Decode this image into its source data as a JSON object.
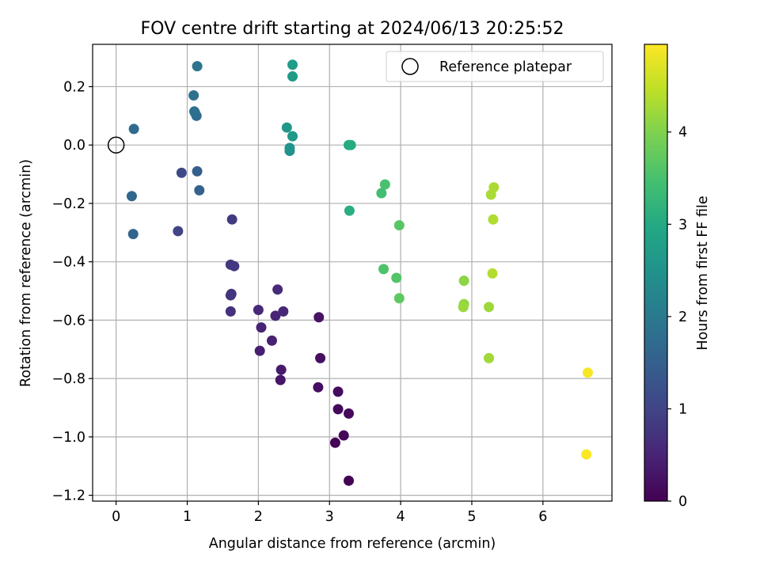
{
  "chart_data": {
    "type": "scatter",
    "title": "FOV centre drift starting at 2024/06/13 20:25:52",
    "xlabel": "Angular distance from reference (arcmin)",
    "ylabel": "Rotation from reference (arcmin)",
    "xlim": [
      -0.33,
      6.97
    ],
    "ylim": [
      -1.22,
      0.345
    ],
    "xticks": [
      0,
      1,
      2,
      3,
      4,
      5,
      6
    ],
    "xtick_labels": [
      "0",
      "1",
      "2",
      "3",
      "4",
      "5",
      "6"
    ],
    "yticks": [
      0.2,
      0.0,
      -0.2,
      -0.4,
      -0.6,
      -0.8,
      -1.0,
      -1.2
    ],
    "ytick_labels": [
      "0.2",
      "0.0",
      "−0.2",
      "−0.4",
      "−0.6",
      "−0.8",
      "−1.0",
      "−1.2"
    ],
    "grid": true,
    "legend": {
      "placement": "top-right",
      "entries": [
        "Reference platepar"
      ]
    },
    "reference_point": {
      "x": 0.0,
      "y": 0.0
    },
    "colorbar": {
      "label": "Hours from first FF file",
      "colormap": "viridis",
      "range": [
        0,
        4.95
      ],
      "ticks": [
        0,
        1,
        2,
        3,
        4
      ],
      "tick_labels": [
        "0",
        "1",
        "2",
        "3",
        "4"
      ]
    },
    "series": [
      {
        "points": [
          {
            "x": 3.27,
            "y": -1.15,
            "c": 0.0
          },
          {
            "x": 3.08,
            "y": -1.02,
            "c": 0.05
          },
          {
            "x": 3.2,
            "y": -0.995,
            "c": 0.08
          },
          {
            "x": 3.27,
            "y": -0.92,
            "c": 0.1
          },
          {
            "x": 3.12,
            "y": -0.905,
            "c": 0.12
          },
          {
            "x": 3.12,
            "y": -0.845,
            "c": 0.15
          },
          {
            "x": 2.84,
            "y": -0.83,
            "c": 0.18
          },
          {
            "x": 2.87,
            "y": -0.73,
            "c": 0.2
          },
          {
            "x": 2.85,
            "y": -0.59,
            "c": 0.25
          },
          {
            "x": 2.31,
            "y": -0.805,
            "c": 0.3
          },
          {
            "x": 2.32,
            "y": -0.77,
            "c": 0.35
          },
          {
            "x": 2.02,
            "y": -0.705,
            "c": 0.42
          },
          {
            "x": 2.19,
            "y": -0.67,
            "c": 0.45
          },
          {
            "x": 2.04,
            "y": -0.625,
            "c": 0.48
          },
          {
            "x": 2.24,
            "y": -0.585,
            "c": 0.5
          },
          {
            "x": 2.35,
            "y": -0.57,
            "c": 0.55
          },
          {
            "x": 2.0,
            "y": -0.565,
            "c": 0.58
          },
          {
            "x": 2.27,
            "y": -0.495,
            "c": 0.6
          },
          {
            "x": 1.61,
            "y": -0.57,
            "c": 0.7
          },
          {
            "x": 1.61,
            "y": -0.515,
            "c": 0.74
          },
          {
            "x": 1.62,
            "y": -0.51,
            "c": 0.76
          },
          {
            "x": 1.61,
            "y": -0.41,
            "c": 0.8
          },
          {
            "x": 1.66,
            "y": -0.415,
            "c": 0.82
          },
          {
            "x": 1.63,
            "y": -0.255,
            "c": 0.85
          },
          {
            "x": 0.87,
            "y": -0.295,
            "c": 1.0
          },
          {
            "x": 0.92,
            "y": -0.095,
            "c": 1.1
          },
          {
            "x": 1.14,
            "y": -0.09,
            "c": 1.5
          },
          {
            "x": 1.17,
            "y": -0.155,
            "c": 1.55
          },
          {
            "x": 0.24,
            "y": -0.305,
            "c": 1.6
          },
          {
            "x": 0.22,
            "y": -0.175,
            "c": 1.65
          },
          {
            "x": 0.25,
            "y": 0.055,
            "c": 1.7
          },
          {
            "x": 1.13,
            "y": 0.1,
            "c": 1.75
          },
          {
            "x": 1.1,
            "y": 0.115,
            "c": 1.78
          },
          {
            "x": 1.11,
            "y": 0.11,
            "c": 1.8
          },
          {
            "x": 1.09,
            "y": 0.17,
            "c": 1.85
          },
          {
            "x": 1.14,
            "y": 0.27,
            "c": 1.9
          },
          {
            "x": 2.44,
            "y": -0.02,
            "c": 2.5
          },
          {
            "x": 2.44,
            "y": -0.01,
            "c": 2.55
          },
          {
            "x": 2.4,
            "y": 0.06,
            "c": 2.6
          },
          {
            "x": 2.48,
            "y": 0.03,
            "c": 2.65
          },
          {
            "x": 2.48,
            "y": 0.235,
            "c": 2.7
          },
          {
            "x": 2.48,
            "y": 0.275,
            "c": 2.72
          },
          {
            "x": 3.27,
            "y": 0.0,
            "c": 3.0
          },
          {
            "x": 3.3,
            "y": 0.0,
            "c": 3.05
          },
          {
            "x": 3.28,
            "y": -0.225,
            "c": 3.1
          },
          {
            "x": 3.73,
            "y": -0.165,
            "c": 3.45
          },
          {
            "x": 3.78,
            "y": -0.135,
            "c": 3.5
          },
          {
            "x": 3.76,
            "y": -0.425,
            "c": 3.55
          },
          {
            "x": 3.94,
            "y": -0.455,
            "c": 3.6
          },
          {
            "x": 3.98,
            "y": -0.275,
            "c": 3.65
          },
          {
            "x": 3.98,
            "y": -0.525,
            "c": 3.7
          },
          {
            "x": 4.89,
            "y": -0.465,
            "c": 4.1
          },
          {
            "x": 4.89,
            "y": -0.545,
            "c": 4.15
          },
          {
            "x": 4.88,
            "y": -0.555,
            "c": 4.2
          },
          {
            "x": 5.24,
            "y": -0.555,
            "c": 4.22
          },
          {
            "x": 5.24,
            "y": -0.73,
            "c": 4.25
          },
          {
            "x": 5.27,
            "y": -0.17,
            "c": 4.3
          },
          {
            "x": 5.31,
            "y": -0.145,
            "c": 4.32
          },
          {
            "x": 5.3,
            "y": -0.255,
            "c": 4.35
          },
          {
            "x": 5.29,
            "y": -0.44,
            "c": 4.38
          },
          {
            "x": 6.63,
            "y": -0.78,
            "c": 4.9
          },
          {
            "x": 6.61,
            "y": -1.06,
            "c": 4.93
          }
        ]
      }
    ]
  }
}
